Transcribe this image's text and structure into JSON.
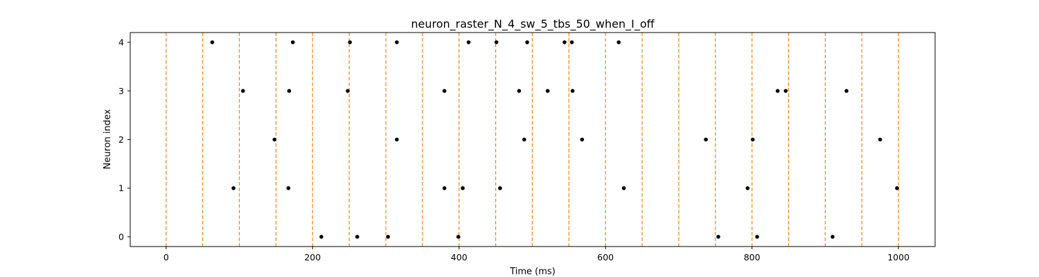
{
  "chart_data": {
    "type": "scatter",
    "title": "neuron_raster_N_4_sw_5_tbs_50_when_I_off",
    "xlabel": "Time (ms)",
    "ylabel": "Neuron index",
    "xlim": [
      -49,
      1050
    ],
    "ylim": [
      -0.2,
      4.2
    ],
    "xticks": [
      0,
      200,
      400,
      600,
      800,
      1000
    ],
    "yticks": [
      0,
      1,
      2,
      3,
      4
    ],
    "grid": false,
    "marker_color": "#000000",
    "vline_color": "#ff7f0e",
    "vline_style": "dashed",
    "vlines": [
      0,
      50,
      100,
      150,
      200,
      250,
      300,
      350,
      400,
      450,
      500,
      550,
      600,
      650,
      700,
      750,
      800,
      850,
      900,
      950,
      1000
    ],
    "spikes": [
      {
        "neuron": 0,
        "times": [
          212,
          261,
          303,
          399,
          754,
          807,
          910
        ]
      },
      {
        "neuron": 1,
        "times": [
          92,
          167,
          380,
          405,
          456,
          625,
          794,
          998
        ]
      },
      {
        "neuron": 2,
        "times": [
          148,
          315,
          489,
          568,
          737,
          801,
          975
        ]
      },
      {
        "neuron": 3,
        "times": [
          105,
          168,
          248,
          380,
          482,
          521,
          555,
          835,
          846,
          929
        ]
      },
      {
        "neuron": 4,
        "times": [
          63,
          173,
          251,
          315,
          413,
          451,
          493,
          544,
          554,
          618
        ]
      }
    ]
  }
}
